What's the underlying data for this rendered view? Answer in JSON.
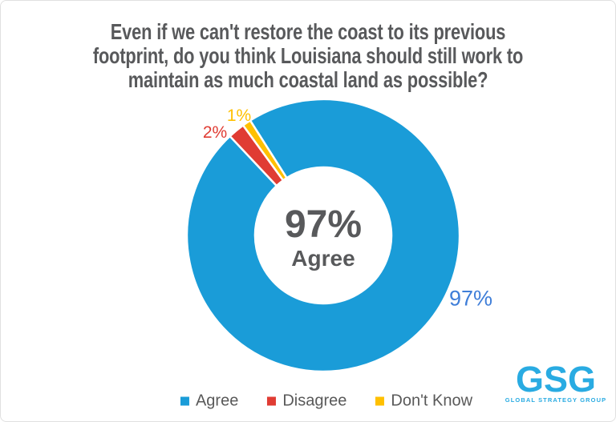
{
  "colors": {
    "background": "#FFFFFF",
    "border": "#E0E0E0",
    "title": "#58595B",
    "text": "#595959"
  },
  "chart_data": {
    "type": "pie",
    "subtype": "donut",
    "title": "Even if we can't restore the coast to its previous\nfootprint, do you think Louisiana should still work to\nmaintain as much coastal land as possible?",
    "categories": [
      "Agree",
      "Disagree",
      "Don't Know"
    ],
    "values": [
      97,
      2,
      1
    ],
    "unit": "%",
    "colors": [
      "#1A9CD8",
      "#E03C33",
      "#FFC000"
    ],
    "slice_labels": [
      {
        "text": "97%",
        "color": "#3F7ED8"
      },
      {
        "text": "2%",
        "color": "#E03C33"
      },
      {
        "text": "1%",
        "color": "#FFC000"
      }
    ],
    "center": {
      "value": "97%",
      "label": "Agree",
      "color": "#58595B"
    },
    "start_angle_deg": -32.4,
    "donut_hole_ratio": 0.5,
    "separator_color": "#FFFFFF",
    "legend": {
      "position": "bottom",
      "entries": [
        "Agree",
        "Disagree",
        "Don't Know"
      ]
    }
  },
  "branding": {
    "logo": "GSG",
    "tagline": "GLOBAL STRATEGY GROUP",
    "color": "#29ABE2"
  }
}
